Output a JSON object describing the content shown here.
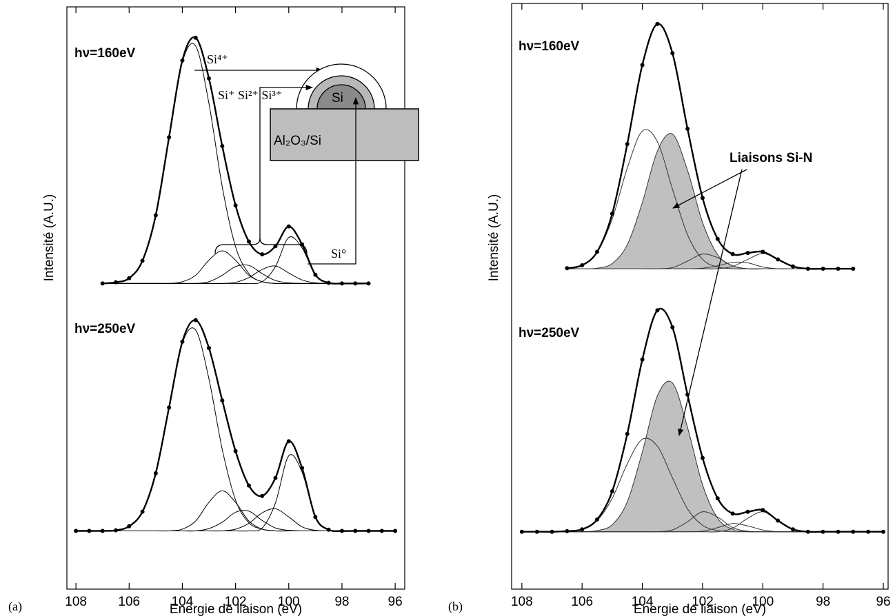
{
  "chart_data": [
    {
      "type": "line",
      "panel_label": "(a)",
      "x_label": "Energie de liaison (eV)",
      "y_label": "Intensité (A.U.)",
      "x": [
        108,
        107.5,
        107,
        106.5,
        106,
        105.5,
        105,
        104.5,
        104,
        103.5,
        103,
        102.5,
        102,
        101.5,
        101,
        100.5,
        100,
        99.5,
        99,
        98.5,
        98,
        97.5,
        97,
        96.5,
        96
      ],
      "xlim": [
        108.34,
        95.64
      ],
      "xticks": [
        108,
        106,
        104,
        102,
        100,
        98,
        96
      ],
      "ylim": [
        0,
        100
      ],
      "annotations": [
        "hν=160eV",
        "hν=250eV",
        "Si⁴⁺",
        "Si⁺ Si²⁺ Si³⁺",
        "Si",
        "Al₂O₃/Si",
        "Si°"
      ],
      "series": [
        {
          "color": "#000000",
          "values": [
            null,
            null,
            52.5,
            52.5,
            52.5,
            52.5,
            52.5,
            52.5,
            52.8,
            53.9,
            56.5,
            58.1,
            56.5,
            53.9,
            52.8,
            52.5,
            52.5,
            52.5,
            52.5,
            52.5,
            52.5,
            52.5,
            52.5,
            null,
            null
          ]
        },
        {
          "color": "#000000",
          "values": [
            null,
            null,
            52.5,
            52.5,
            52.5,
            52.5,
            52.5,
            52.5,
            52.5,
            52.5,
            52.8,
            53.9,
            55.4,
            55.6,
            54.2,
            53.0,
            52.6,
            52.5,
            52.5,
            52.5,
            52.5,
            52.5,
            52.5,
            null,
            null
          ]
        },
        {
          "color": "#000000",
          "values": [
            null,
            null,
            52.5,
            52.5,
            52.5,
            52.5,
            52.5,
            52.5,
            52.5,
            52.5,
            52.5,
            52.5,
            52.7,
            53.5,
            54.9,
            55.5,
            54.3,
            53.1,
            52.6,
            52.5,
            52.5,
            52.5,
            52.5,
            null,
            null
          ]
        },
        {
          "color": "#000000",
          "values": [
            null,
            null,
            52.5,
            52.5,
            52.5,
            52.5,
            52.5,
            52.5,
            52.5,
            52.5,
            52.5,
            52.5,
            52.5,
            52.5,
            52.8,
            55.4,
            60.4,
            58.6,
            53.9,
            52.6,
            52.5,
            52.5,
            52.5,
            null,
            null
          ]
        },
        {
          "color": "#000000",
          "values": [
            null,
            null,
            52.5,
            52.7,
            53.4,
            56.4,
            64.2,
            77.6,
            90.5,
            93.3,
            83.4,
            69.1,
            58.8,
            54.2,
            52.8,
            52.5,
            52.5,
            52.5,
            52.5,
            52.5,
            52.5,
            52.5,
            52.5,
            null,
            null
          ]
        },
        {
          "color": "#000000",
          "markers": true,
          "values": [
            null,
            null,
            52.5,
            52.7,
            53.4,
            56.4,
            64.2,
            77.6,
            90.8,
            94.7,
            87.7,
            76.1,
            65.9,
            59.7,
            57.5,
            58.9,
            62.3,
            59.2,
            54.0,
            52.6,
            52.5,
            52.5,
            52.5,
            null,
            null
          ]
        },
        {
          "color": "#000000",
          "values": [
            10,
            10,
            10,
            10,
            10,
            10,
            10,
            10,
            10.3,
            11.7,
            14.9,
            16.9,
            14.9,
            11.7,
            10.3,
            10,
            10,
            10,
            10,
            10,
            10,
            10,
            10,
            10,
            10
          ]
        },
        {
          "color": "#000000",
          "values": [
            10,
            10,
            10,
            10,
            10,
            10,
            10,
            10,
            10,
            10,
            10.4,
            11.5,
            13.2,
            13.4,
            11.8,
            10.5,
            10.1,
            10,
            10,
            10,
            10,
            10,
            10,
            10,
            10
          ]
        },
        {
          "color": "#000000",
          "values": [
            10,
            10,
            10,
            10,
            10,
            10,
            10,
            10,
            10,
            10,
            10,
            10,
            10.3,
            11.3,
            13.1,
            13.8,
            12.4,
            10.7,
            10.1,
            10,
            10,
            10,
            10,
            10,
            10
          ]
        },
        {
          "color": "#000000",
          "values": [
            10,
            10,
            10,
            10,
            10,
            10,
            10,
            10,
            10,
            10,
            10,
            10,
            10,
            10,
            10.5,
            14.8,
            22.9,
            20.1,
            12.3,
            10.2,
            10,
            10,
            10,
            10,
            10
          ]
        },
        {
          "color": "#000000",
          "values": [
            10,
            10,
            10,
            10.1,
            10.8,
            13.3,
            19.9,
            31.2,
            42.2,
            44.5,
            36.1,
            24.0,
            15.3,
            11.4,
            10.3,
            10,
            10,
            10,
            10,
            10,
            10,
            10,
            10,
            10,
            10
          ]
        },
        {
          "color": "#000000",
          "markers": true,
          "values": [
            10,
            10,
            10,
            10.1,
            10.8,
            13.3,
            19.9,
            31.2,
            42.5,
            46.2,
            41.4,
            32.4,
            23.7,
            17.8,
            16.0,
            19.1,
            25.4,
            20.8,
            12.4,
            10.2,
            10,
            10,
            10,
            10,
            10
          ]
        }
      ]
    },
    {
      "type": "line",
      "panel_label": "(b)",
      "x_label": "Energie de liaison (eV)",
      "y_label": "Intensité (A.U.)",
      "x": [
        108,
        107.5,
        107,
        106.5,
        106,
        105.5,
        105,
        104.5,
        104,
        103.5,
        103,
        102.5,
        102,
        101.5,
        101,
        100.5,
        100,
        99.5,
        99,
        98.5,
        98,
        97.5,
        97,
        96.5,
        96
      ],
      "xlim": [
        108.34,
        95.84
      ],
      "xticks": [
        108,
        106,
        104,
        102,
        100,
        98,
        96
      ],
      "ylim": [
        0,
        100
      ],
      "annotations": [
        "hν=160eV",
        "hν=250eV",
        "Liaisons Si-N"
      ],
      "series": [
        {
          "color": "#333333",
          "fill": "#ffffff",
          "values": [
            null,
            null,
            null,
            54.8,
            55.3,
            57.5,
            63.2,
            71.9,
            78.2,
            76.4,
            68.3,
            60.5,
            56.3,
            55.0,
            54.7,
            54.7,
            54.7,
            54.7,
            54.7,
            54.7,
            54.7,
            54.7,
            54.7,
            null,
            null
          ]
        },
        {
          "color": "#333333",
          "fill": "#c0c0c0",
          "values": [
            null,
            null,
            null,
            54.7,
            54.7,
            54.8,
            55.6,
            58.8,
            66.0,
            74.8,
            77.7,
            71.5,
            62.6,
            57.1,
            55.2,
            54.7,
            54.7,
            54.7,
            54.7,
            54.7,
            54.7,
            54.7,
            54.7,
            null,
            null
          ]
        },
        {
          "color": "#333333",
          "values": [
            null,
            null,
            null,
            54.7,
            54.7,
            54.7,
            54.7,
            54.7,
            54.7,
            54.7,
            54.9,
            56.0,
            57.2,
            56.6,
            55.2,
            54.7,
            54.7,
            54.7,
            54.7,
            54.7,
            54.7,
            54.7,
            54.7,
            null,
            null
          ]
        },
        {
          "color": "#333333",
          "values": [
            null,
            null,
            null,
            54.7,
            54.7,
            54.7,
            54.7,
            54.7,
            54.7,
            54.7,
            54.7,
            54.7,
            54.8,
            55.2,
            55.8,
            55.7,
            55.0,
            54.7,
            54.7,
            54.7,
            54.7,
            54.7,
            54.7,
            null,
            null
          ]
        },
        {
          "color": "#333333",
          "values": [
            null,
            null,
            null,
            54.7,
            54.7,
            54.7,
            54.7,
            54.7,
            54.7,
            54.7,
            54.7,
            54.7,
            54.7,
            54.7,
            55.1,
            56.3,
            57.3,
            56.3,
            55.1,
            54.7,
            54.7,
            54.7,
            54.7,
            null,
            null
          ]
        },
        {
          "color": "#000000",
          "markers": true,
          "values": [
            null,
            null,
            null,
            54.8,
            55.3,
            57.6,
            64.1,
            76.0,
            89.5,
            96.5,
            91.5,
            78.6,
            66.8,
            59.8,
            57.2,
            57.4,
            57.6,
            56.3,
            55.1,
            54.7,
            54.7,
            54.7,
            54.7,
            null,
            null
          ]
        },
        {
          "color": "#333333",
          "fill": "#ffffff",
          "values": [
            9.8,
            9.8,
            9.8,
            9.9,
            10.2,
            11.7,
            15.5,
            21.4,
            25.6,
            24.4,
            19.0,
            13.7,
            10.9,
            10.0,
            9.8,
            9.8,
            9.8,
            9.8,
            9.8,
            9.8,
            9.8,
            9.8,
            9.8,
            9.8,
            9.8
          ]
        },
        {
          "color": "#333333",
          "fill": "#c0c0c0",
          "values": [
            9.8,
            9.8,
            9.8,
            9.8,
            9.8,
            10.0,
            11.0,
            14.9,
            23.4,
            33.0,
            35.2,
            27.6,
            17.8,
            12.1,
            10.2,
            9.8,
            9.8,
            9.8,
            9.8,
            9.8,
            9.8,
            9.8,
            9.8,
            9.8,
            9.8
          ]
        },
        {
          "color": "#333333",
          "values": [
            9.8,
            9.8,
            9.8,
            9.8,
            9.8,
            9.8,
            9.8,
            9.8,
            9.8,
            9.8,
            10.1,
            11.5,
            13.2,
            12.3,
            10.5,
            9.9,
            9.8,
            9.8,
            9.8,
            9.8,
            9.8,
            9.8,
            9.8,
            9.8,
            9.8
          ]
        },
        {
          "color": "#333333",
          "values": [
            9.8,
            9.8,
            9.8,
            9.8,
            9.8,
            9.8,
            9.8,
            9.8,
            9.8,
            9.8,
            9.8,
            9.8,
            9.9,
            10.5,
            11.2,
            10.8,
            10.1,
            9.8,
            9.8,
            9.8,
            9.8,
            9.8,
            9.8,
            9.8,
            9.8
          ]
        },
        {
          "color": "#333333",
          "values": [
            9.8,
            9.8,
            9.8,
            9.8,
            9.8,
            9.8,
            9.8,
            9.8,
            9.8,
            9.8,
            9.8,
            9.8,
            9.8,
            9.8,
            10.4,
            12.1,
            13.2,
            11.7,
            10.2,
            9.8,
            9.8,
            9.8,
            9.8,
            9.8,
            9.8
          ]
        },
        {
          "color": "#000000",
          "markers": true,
          "values": [
            9.8,
            9.8,
            9.8,
            9.9,
            10.2,
            11.9,
            16.7,
            26.5,
            39.2,
            47.6,
            44.7,
            33.2,
            22.4,
            15.5,
            12.9,
            13.2,
            13.5,
            11.7,
            10.2,
            9.8,
            9.8,
            9.8,
            9.8,
            9.8,
            9.8
          ]
        }
      ]
    }
  ]
}
